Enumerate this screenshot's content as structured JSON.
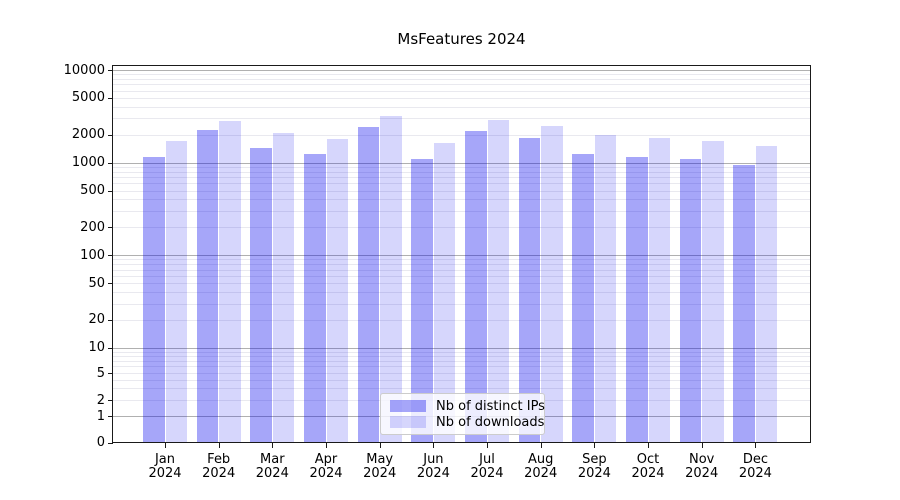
{
  "chart_data": {
    "type": "bar",
    "title": "MsFeatures 2024",
    "y_scale": "symlog",
    "grid": true,
    "legend_position": "inside-bottom-center",
    "ylim": [
      0,
      11000
    ],
    "categories": [
      {
        "month": "Jan",
        "year": "2024"
      },
      {
        "month": "Feb",
        "year": "2024"
      },
      {
        "month": "Mar",
        "year": "2024"
      },
      {
        "month": "Apr",
        "year": "2024"
      },
      {
        "month": "May",
        "year": "2024"
      },
      {
        "month": "Jun",
        "year": "2024"
      },
      {
        "month": "Jul",
        "year": "2024"
      },
      {
        "month": "Aug",
        "year": "2024"
      },
      {
        "month": "Sep",
        "year": "2024"
      },
      {
        "month": "Oct",
        "year": "2024"
      },
      {
        "month": "Nov",
        "year": "2024"
      },
      {
        "month": "Dec",
        "year": "2024"
      }
    ],
    "series": [
      {
        "name": "Nb of distinct IPs",
        "key": "distinct-ips",
        "color": "rgba(0,0,238,0.35)",
        "values": [
          1150,
          2250,
          1450,
          1250,
          2450,
          1100,
          2200,
          1850,
          1250,
          1150,
          1100,
          950
        ]
      },
      {
        "name": "Nb of downloads",
        "key": "downloads",
        "color": "rgba(0,0,238,0.16)",
        "values": [
          1700,
          2800,
          2100,
          1800,
          3200,
          1650,
          2900,
          2500,
          2000,
          1850,
          1700,
          1500
        ]
      }
    ],
    "y_ticks": [
      {
        "value": 0,
        "label": "0"
      },
      {
        "value": 1,
        "label": "1"
      },
      {
        "value": 2,
        "label": "2"
      },
      {
        "value": 5,
        "label": "5"
      },
      {
        "value": 10,
        "label": "10"
      },
      {
        "value": 20,
        "label": "20"
      },
      {
        "value": 50,
        "label": "50"
      },
      {
        "value": 100,
        "label": "100"
      },
      {
        "value": 200,
        "label": "200"
      },
      {
        "value": 500,
        "label": "500"
      },
      {
        "value": 1000,
        "label": "1000"
      },
      {
        "value": 2000,
        "label": "2000"
      },
      {
        "value": 5000,
        "label": "5000"
      },
      {
        "value": 10000,
        "label": "10000"
      }
    ]
  },
  "colors": {
    "major_grid": "#b0b0b0",
    "minor_grid": "#e9e9ef",
    "spine": "#1a1a1a",
    "background": "#ffffff",
    "legend_border": "#cccccc"
  }
}
